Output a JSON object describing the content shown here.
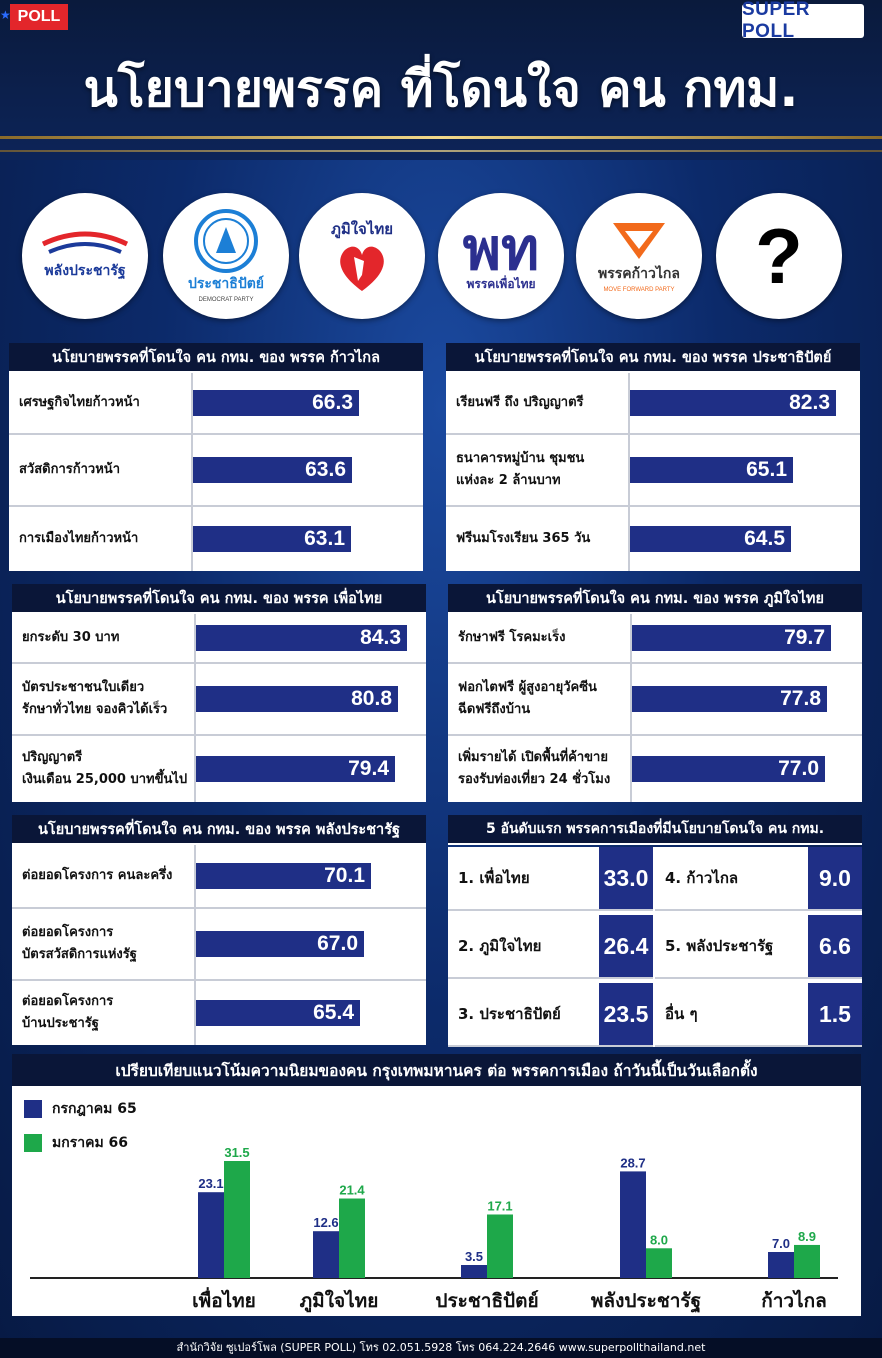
{
  "badge": {
    "poll": "POLL",
    "super_poll": "SUPER POLL"
  },
  "title": "นโยบายพรรค ที่โดนใจ คน กทม.",
  "logos": [
    {
      "name": "พลังประชารัฐ",
      "sub": "",
      "color": "#1b3a9a"
    },
    {
      "name": "ประชาธิปัตย์",
      "sub": "DEMOCRAT PARTY",
      "color": "#1c7fd6"
    },
    {
      "name": "ภูมิใจไทย",
      "sub": "",
      "color": "#1f2f86"
    },
    {
      "name": "พรรคเพื่อไทย",
      "sub": "",
      "color": "#2b2f8f"
    },
    {
      "name": "พรรคก้าวไกล",
      "sub": "MOVE FORWARD PARTY",
      "color": "#f26a1b"
    },
    {
      "name": "?",
      "sub": "",
      "color": "#000000"
    }
  ],
  "colors": {
    "bar": "#1f2f86",
    "jul65": "#1f2f86",
    "jan66": "#1ea84a"
  },
  "panels": [
    {
      "title": "นโยบายพรรคที่โดนใจ คน กทม. ของ พรรค ก้าวไกล",
      "rows": [
        {
          "label": "เศรษฐกิจไทยก้าวหน้า",
          "value": "66.3"
        },
        {
          "label": "สวัสดิการก้าวหน้า",
          "value": "63.6"
        },
        {
          "label": "การเมืองไทยก้าวหน้า",
          "value": "63.1"
        }
      ]
    },
    {
      "title": "นโยบายพรรคที่โดนใจ คน กทม. ของ พรรค ประชาธิปัตย์",
      "rows": [
        {
          "label": "เรียนฟรี ถึง ปริญญาตรี",
          "value": "82.3"
        },
        {
          "label": "ธนาคารหมู่บ้าน ชุมชน\nแห่งละ 2 ล้านบาท",
          "value": "65.1"
        },
        {
          "label": "ฟรีนมโรงเรียน 365 วัน",
          "value": "64.5"
        }
      ]
    },
    {
      "title": "นโยบายพรรคที่โดนใจ คน กทม. ของ พรรค เพื่อไทย",
      "rows": [
        {
          "label": "ยกระดับ 30 บาท",
          "value": "84.3"
        },
        {
          "label": "บัตรประชาชนใบเดียว\nรักษาทั่วไทย จองคิวได้เร็ว",
          "value": "80.8"
        },
        {
          "label": "ปริญญาตรี\nเงินเดือน 25,000 บาทขึ้นไป",
          "value": "79.4"
        }
      ]
    },
    {
      "title": "นโยบายพรรคที่โดนใจ คน กทม. ของ พรรค ภูมิใจไทย",
      "rows": [
        {
          "label": "รักษาฟรี โรคมะเร็ง",
          "value": "79.7"
        },
        {
          "label": "ฟอกไตฟรี ผู้สูงอายุวัคซีน\nฉีดฟรีถึงบ้าน",
          "value": "77.8"
        },
        {
          "label": "เพิ่มรายได้ เปิดพื้นที่ค้าขาย\nรองรับท่องเที่ยว 24 ชั่วโมง",
          "value": "77.0"
        }
      ]
    },
    {
      "title": "นโยบายพรรคที่โดนใจ คน กทม. ของ พรรค พลังประชารัฐ",
      "rows": [
        {
          "label": "ต่อยอดโครงการ คนละครึ่ง",
          "value": "70.1"
        },
        {
          "label": "ต่อยอดโครงการ\nบัตรสวัสดิการแห่งรัฐ",
          "value": "67.0"
        },
        {
          "label": "ต่อยอดโครงการ\nบ้านประชารัฐ",
          "value": "65.4"
        }
      ]
    }
  ],
  "ranking": {
    "title": "5 อันดับแรก พรรคการเมืองที่มีนโยบายโดนใจ คน กทม.",
    "items": [
      {
        "label": "1. เพื่อไทย",
        "value": "33.0"
      },
      {
        "label": "2. ภูมิใจไทย",
        "value": "26.4"
      },
      {
        "label": "3. ประชาธิปัตย์",
        "value": "23.5"
      },
      {
        "label": "4. ก้าวไกล",
        "value": "9.0"
      },
      {
        "label": "5. พลังประชารัฐ",
        "value": "6.6"
      },
      {
        "label": "อื่น ๆ",
        "value": "1.5"
      }
    ]
  },
  "chart_data": {
    "type": "bar",
    "title": "เปรียบเทียบแนวโน้มความนิยมของคน กรุงเทพมหานคร ต่อ พรรคการเมือง ถ้าวันนี้เป็นวันเลือกตั้ง",
    "categories": [
      "เพื่อไทย",
      "ภูมิใจไทย",
      "ประชาธิปัตย์",
      "พลังประชารัฐ",
      "ก้าวไกล"
    ],
    "series": [
      {
        "name": "กรกฎาคม 65",
        "values": [
          23.1,
          12.6,
          3.5,
          28.7,
          7.0
        ],
        "labels": [
          "23.1",
          "12.6",
          "3.5",
          "28.7",
          "7.0"
        ]
      },
      {
        "name": "มกราคม 66",
        "values": [
          31.5,
          21.4,
          17.1,
          8.0,
          8.9
        ],
        "labels": [
          "31.5",
          "21.4",
          "17.1",
          "8.0",
          "8.9"
        ]
      }
    ],
    "ylim": [
      0,
      35
    ],
    "legend": "top-left",
    "grid": false
  },
  "footer": "สำนักวิจัย ซูเปอร์โพล (SUPER POLL) โทร 02.051.5928 โทร 064.224.2646    www.superpollthailand.net"
}
